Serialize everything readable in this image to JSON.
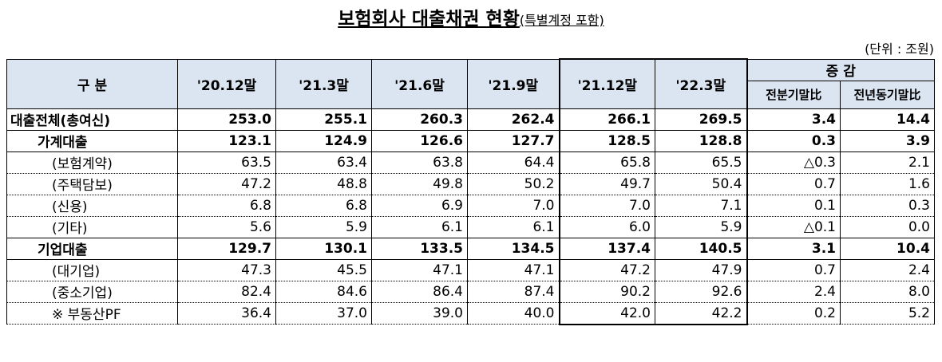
{
  "header": {
    "title": "보험회사 대출채권 현황",
    "subtitle": "(특별계정 포함)",
    "unit": "(단위 : 조원)"
  },
  "table": {
    "corner": "구 분",
    "periods": [
      "'20.12말",
      "'21.3말",
      "'21.6말",
      "'21.9말",
      "'21.12말",
      "'22.3말"
    ],
    "change": "증  감",
    "change_sub": [
      "전분기말比",
      "전년동기말比"
    ],
    "rows": [
      {
        "label": "대출전체(총여신)",
        "values": [
          "253.0",
          "255.1",
          "260.3",
          "262.4",
          "266.1",
          "269.5",
          "3.4",
          "14.4"
        ]
      },
      {
        "label": "가계대출",
        "values": [
          "123.1",
          "124.9",
          "126.6",
          "127.7",
          "128.5",
          "128.8",
          "0.3",
          "3.9"
        ]
      },
      {
        "label": "(보험계약)",
        "values": [
          "63.5",
          "63.4",
          "63.8",
          "64.4",
          "65.8",
          "65.5",
          "△0.3",
          "2.1"
        ]
      },
      {
        "label": "(주택담보)",
        "values": [
          "47.2",
          "48.8",
          "49.8",
          "50.2",
          "49.7",
          "50.4",
          "0.7",
          "1.6"
        ]
      },
      {
        "label": "(신용)",
        "values": [
          "6.8",
          "6.8",
          "6.9",
          "7.0",
          "7.0",
          "7.1",
          "0.1",
          "0.3"
        ]
      },
      {
        "label": "(기타)",
        "values": [
          "5.6",
          "5.9",
          "6.1",
          "6.1",
          "6.0",
          "5.9",
          "△0.1",
          "0.0"
        ]
      },
      {
        "label": "기업대출",
        "values": [
          "129.7",
          "130.1",
          "133.5",
          "134.5",
          "137.4",
          "140.5",
          "3.1",
          "10.4"
        ]
      },
      {
        "label": "(대기업)",
        "values": [
          "47.3",
          "45.5",
          "47.1",
          "47.1",
          "47.2",
          "47.9",
          "0.7",
          "2.4"
        ]
      },
      {
        "label": "(중소기업)",
        "values": [
          "82.4",
          "84.6",
          "86.4",
          "87.4",
          "90.2",
          "92.6",
          "2.4",
          "8.0"
        ]
      },
      {
        "label": "※ 부동산PF",
        "values": [
          "36.4",
          "37.0",
          "39.0",
          "40.0",
          "42.0",
          "42.2",
          "0.2",
          "5.2"
        ]
      }
    ]
  }
}
